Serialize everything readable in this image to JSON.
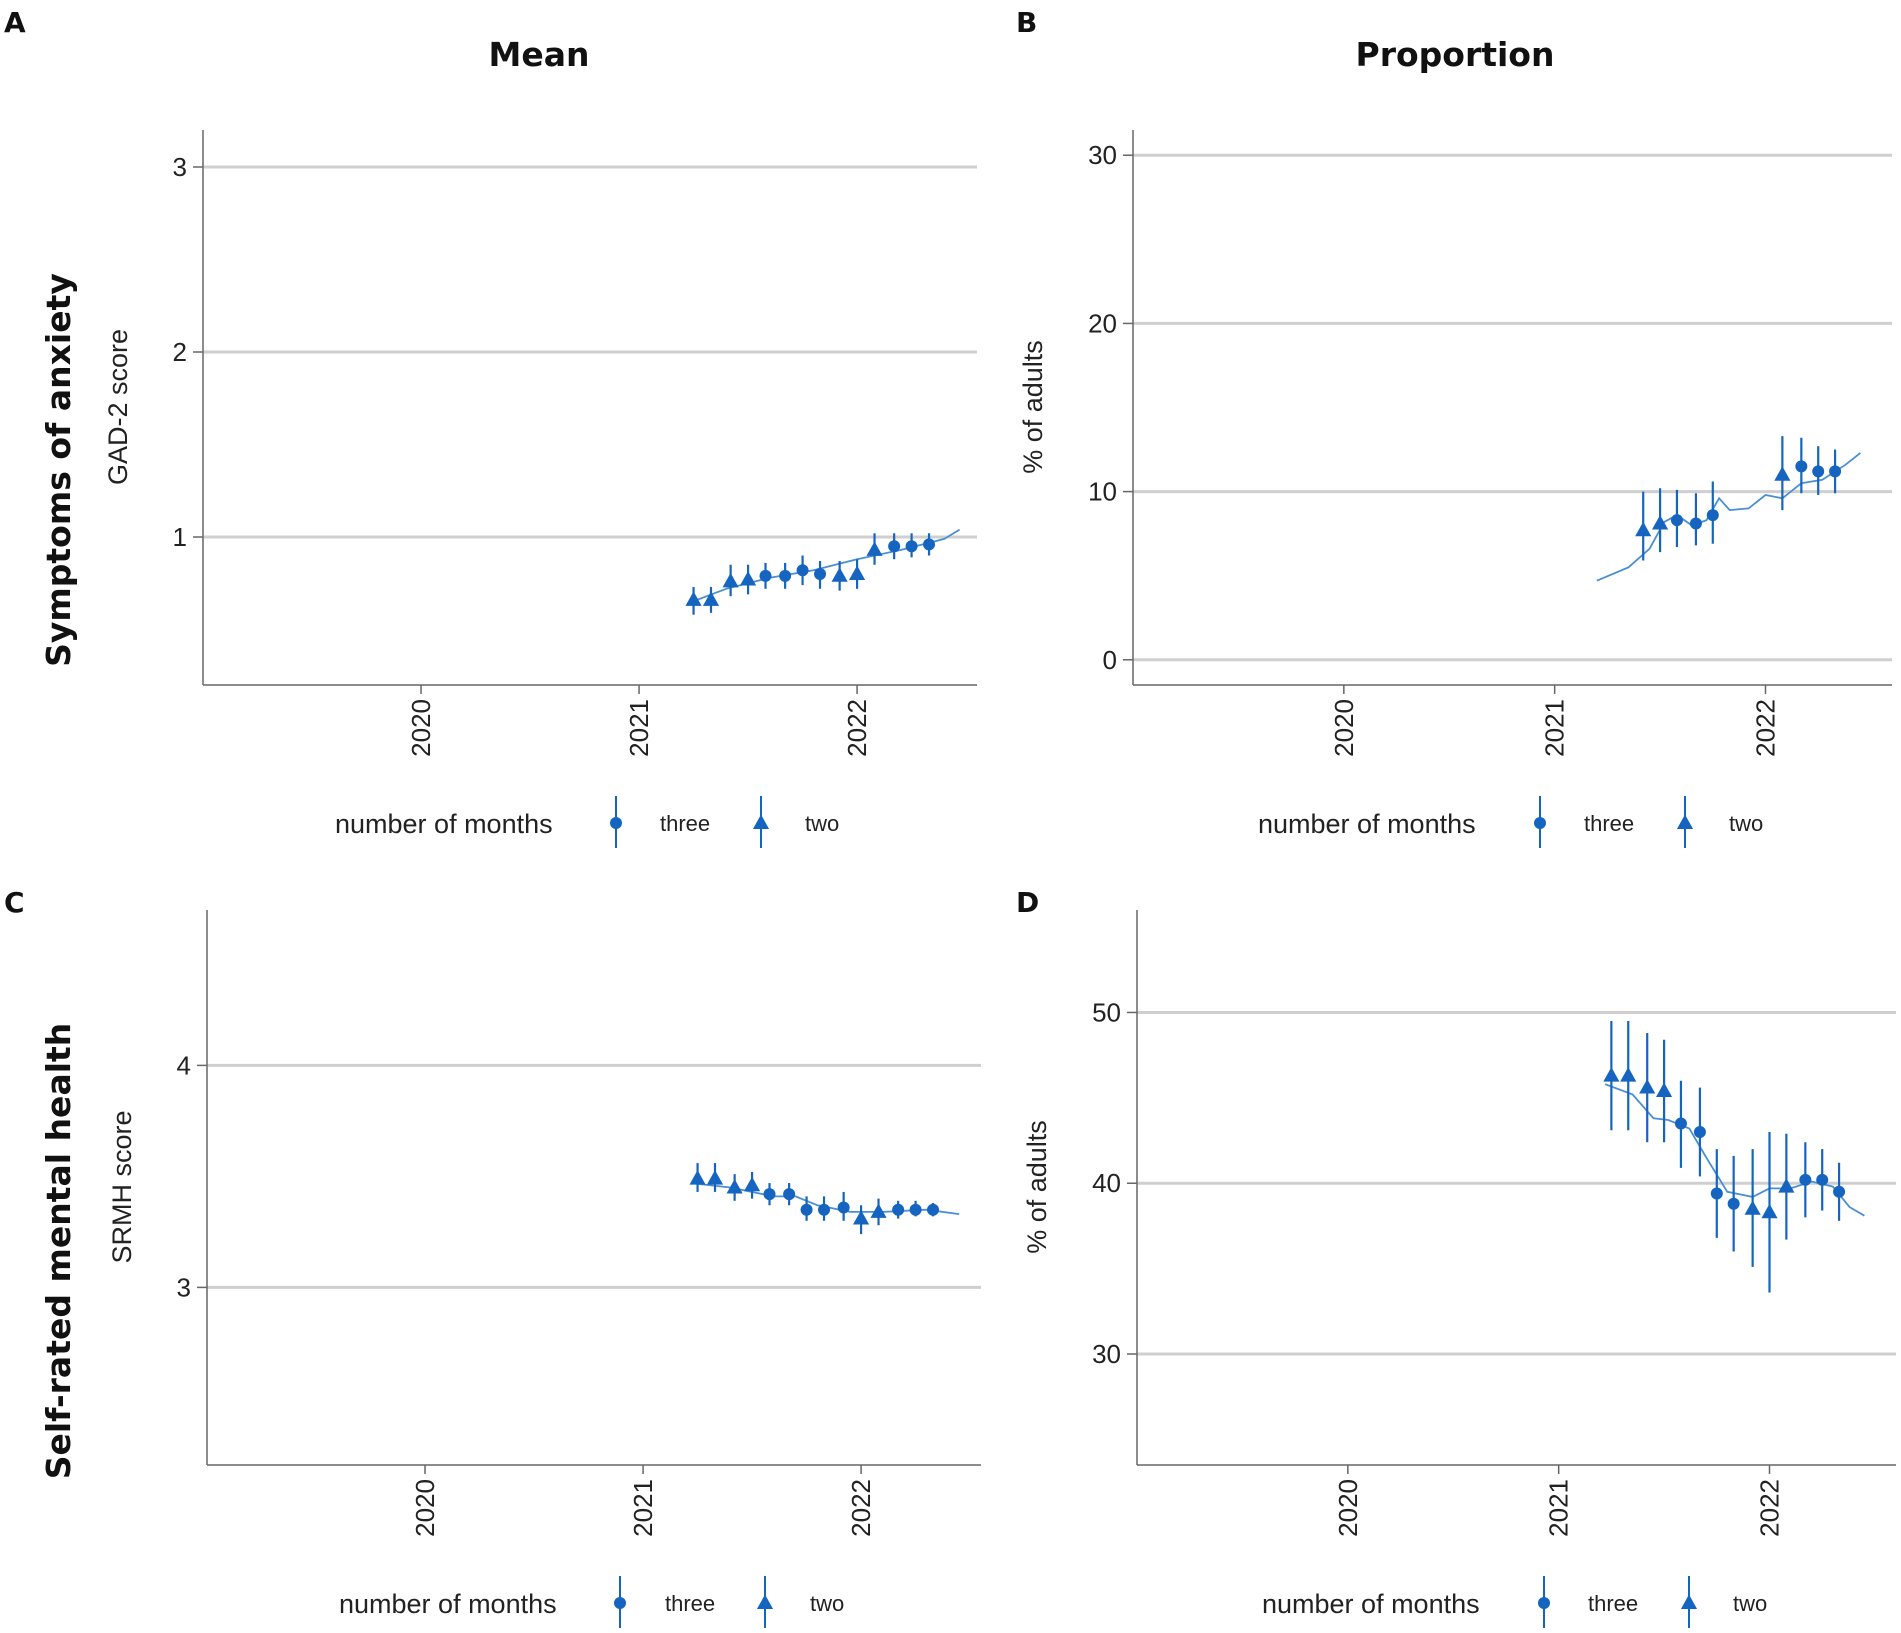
{
  "figure": {
    "col_titles": [
      "Mean",
      "Proportion"
    ],
    "row_titles": [
      "Symptoms of anxiety",
      "Self-rated mental health"
    ],
    "colors": {
      "series": "#1565c0",
      "fit": "#4a8fd6",
      "grid": "#cfcfcf",
      "axis": "#666666",
      "text": "#222222"
    }
  },
  "chart_data": [
    {
      "panel": "A",
      "type": "scatter",
      "ylabel": "GAD-2 score",
      "ylim": [
        0.2,
        3.2
      ],
      "yticks": [
        1,
        2,
        3
      ],
      "yticklabels": [
        "1",
        "2",
        "3"
      ],
      "xlim": [
        2019.0,
        2022.55
      ],
      "xticks": [
        2020,
        2021,
        2022
      ],
      "xticklabels": [
        "2020",
        "2021",
        "2022"
      ],
      "legend": {
        "title": "number of months",
        "entries": [
          "three",
          "two"
        ]
      },
      "points": [
        {
          "x": 2021.25,
          "y": 0.66,
          "lo": 0.58,
          "hi": 0.73,
          "s": "two"
        },
        {
          "x": 2021.33,
          "y": 0.66,
          "lo": 0.59,
          "hi": 0.73,
          "s": "two"
        },
        {
          "x": 2021.42,
          "y": 0.76,
          "lo": 0.68,
          "hi": 0.85,
          "s": "two"
        },
        {
          "x": 2021.5,
          "y": 0.77,
          "lo": 0.69,
          "hi": 0.85,
          "s": "two"
        },
        {
          "x": 2021.58,
          "y": 0.79,
          "lo": 0.72,
          "hi": 0.86,
          "s": "three"
        },
        {
          "x": 2021.67,
          "y": 0.79,
          "lo": 0.72,
          "hi": 0.86,
          "s": "three"
        },
        {
          "x": 2021.75,
          "y": 0.82,
          "lo": 0.74,
          "hi": 0.9,
          "s": "three"
        },
        {
          "x": 2021.83,
          "y": 0.8,
          "lo": 0.72,
          "hi": 0.87,
          "s": "three"
        },
        {
          "x": 2021.92,
          "y": 0.79,
          "lo": 0.71,
          "hi": 0.87,
          "s": "two"
        },
        {
          "x": 2022.0,
          "y": 0.8,
          "lo": 0.72,
          "hi": 0.88,
          "s": "two"
        },
        {
          "x": 2022.08,
          "y": 0.93,
          "lo": 0.85,
          "hi": 1.02,
          "s": "two"
        },
        {
          "x": 2022.17,
          "y": 0.95,
          "lo": 0.88,
          "hi": 1.02,
          "s": "three"
        },
        {
          "x": 2022.25,
          "y": 0.95,
          "lo": 0.89,
          "hi": 1.02,
          "s": "three"
        },
        {
          "x": 2022.33,
          "y": 0.96,
          "lo": 0.9,
          "hi": 1.02,
          "s": "three"
        }
      ],
      "fit": [
        [
          2021.22,
          0.64
        ],
        [
          2021.4,
          0.72
        ],
        [
          2021.6,
          0.78
        ],
        [
          2021.8,
          0.82
        ],
        [
          2022.0,
          0.88
        ],
        [
          2022.2,
          0.93
        ],
        [
          2022.4,
          0.99
        ],
        [
          2022.47,
          1.04
        ]
      ]
    },
    {
      "panel": "B",
      "type": "scatter",
      "ylabel": "% of adults",
      "ylim": [
        -1.5,
        31.5
      ],
      "yticks": [
        0,
        10,
        20,
        30
      ],
      "yticklabels": [
        "0",
        "10",
        "20",
        "30"
      ],
      "xlim": [
        2019.0,
        2022.6
      ],
      "xticks": [
        2020,
        2021,
        2022
      ],
      "xticklabels": [
        "2020",
        "2021",
        "2022"
      ],
      "legend": {
        "title": "number of months",
        "entries": [
          "three",
          "two"
        ]
      },
      "points": [
        {
          "x": 2021.42,
          "y": 7.7,
          "lo": 5.9,
          "hi": 10.0,
          "s": "two"
        },
        {
          "x": 2021.5,
          "y": 8.1,
          "lo": 6.4,
          "hi": 10.2,
          "s": "two"
        },
        {
          "x": 2021.58,
          "y": 8.3,
          "lo": 6.7,
          "hi": 10.1,
          "s": "three"
        },
        {
          "x": 2021.67,
          "y": 8.1,
          "lo": 6.8,
          "hi": 9.9,
          "s": "three"
        },
        {
          "x": 2021.75,
          "y": 8.6,
          "lo": 6.9,
          "hi": 10.6,
          "s": "three"
        },
        {
          "x": 2022.08,
          "y": 11.0,
          "lo": 8.9,
          "hi": 13.3,
          "s": "two"
        },
        {
          "x": 2022.17,
          "y": 11.5,
          "lo": 9.9,
          "hi": 13.2,
          "s": "three"
        },
        {
          "x": 2022.25,
          "y": 11.2,
          "lo": 9.8,
          "hi": 12.7,
          "s": "three"
        },
        {
          "x": 2022.33,
          "y": 11.2,
          "lo": 9.9,
          "hi": 12.5,
          "s": "three"
        }
      ],
      "fit": [
        [
          2021.2,
          4.7
        ],
        [
          2021.35,
          5.5
        ],
        [
          2021.45,
          6.6
        ],
        [
          2021.52,
          8.2
        ],
        [
          2021.58,
          8.6
        ],
        [
          2021.65,
          8.0
        ],
        [
          2021.72,
          8.3
        ],
        [
          2021.78,
          9.6
        ],
        [
          2021.83,
          8.9
        ],
        [
          2021.92,
          9.0
        ],
        [
          2022.0,
          9.8
        ],
        [
          2022.08,
          9.6
        ],
        [
          2022.17,
          10.5
        ],
        [
          2022.27,
          10.7
        ],
        [
          2022.38,
          11.6
        ],
        [
          2022.45,
          12.3
        ]
      ]
    },
    {
      "panel": "C",
      "type": "scatter",
      "ylabel": "SRMH score",
      "ylim": [
        2.2,
        4.7
      ],
      "yticks": [
        3,
        4
      ],
      "yticklabels": [
        "3",
        "4"
      ],
      "xlim": [
        2019.0,
        2022.55
      ],
      "xticks": [
        2020,
        2021,
        2022
      ],
      "xticklabels": [
        "2020",
        "2021",
        "2022"
      ],
      "legend": {
        "title": "number of months",
        "entries": [
          "three",
          "two"
        ]
      },
      "points": [
        {
          "x": 2021.25,
          "y": 3.49,
          "lo": 3.43,
          "hi": 3.56,
          "s": "two"
        },
        {
          "x": 2021.33,
          "y": 3.49,
          "lo": 3.43,
          "hi": 3.56,
          "s": "two"
        },
        {
          "x": 2021.42,
          "y": 3.45,
          "lo": 3.39,
          "hi": 3.51,
          "s": "two"
        },
        {
          "x": 2021.5,
          "y": 3.46,
          "lo": 3.4,
          "hi": 3.52,
          "s": "two"
        },
        {
          "x": 2021.58,
          "y": 3.42,
          "lo": 3.37,
          "hi": 3.47,
          "s": "three"
        },
        {
          "x": 2021.67,
          "y": 3.42,
          "lo": 3.37,
          "hi": 3.47,
          "s": "three"
        },
        {
          "x": 2021.75,
          "y": 3.35,
          "lo": 3.3,
          "hi": 3.41,
          "s": "three"
        },
        {
          "x": 2021.83,
          "y": 3.35,
          "lo": 3.3,
          "hi": 3.41,
          "s": "three"
        },
        {
          "x": 2021.92,
          "y": 3.36,
          "lo": 3.3,
          "hi": 3.43,
          "s": "three"
        },
        {
          "x": 2022.0,
          "y": 3.31,
          "lo": 3.24,
          "hi": 3.37,
          "s": "two"
        },
        {
          "x": 2022.08,
          "y": 3.34,
          "lo": 3.28,
          "hi": 3.4,
          "s": "two"
        },
        {
          "x": 2022.17,
          "y": 3.35,
          "lo": 3.31,
          "hi": 3.39,
          "s": "three"
        },
        {
          "x": 2022.25,
          "y": 3.35,
          "lo": 3.32,
          "hi": 3.39,
          "s": "three"
        },
        {
          "x": 2022.33,
          "y": 3.35,
          "lo": 3.32,
          "hi": 3.38,
          "s": "three"
        }
      ],
      "fit": [
        [
          2021.22,
          3.47
        ],
        [
          2021.4,
          3.45
        ],
        [
          2021.6,
          3.41
        ],
        [
          2021.7,
          3.41
        ],
        [
          2021.8,
          3.37
        ],
        [
          2021.95,
          3.34
        ],
        [
          2022.1,
          3.34
        ],
        [
          2022.3,
          3.35
        ],
        [
          2022.45,
          3.33
        ]
      ]
    },
    {
      "panel": "D",
      "type": "scatter",
      "ylabel": "% of adults",
      "ylim": [
        23.5,
        56.0
      ],
      "yticks": [
        30,
        40,
        50
      ],
      "yticklabels": [
        "30",
        "40",
        "50"
      ],
      "xlim": [
        2019.0,
        2022.6
      ],
      "xticks": [
        2020,
        2021,
        2022
      ],
      "xticklabels": [
        "2020",
        "2021",
        "2022"
      ],
      "legend": {
        "title": "number of months",
        "entries": [
          "three",
          "two"
        ]
      },
      "points": [
        {
          "x": 2021.25,
          "y": 46.3,
          "lo": 43.1,
          "hi": 49.5,
          "s": "two"
        },
        {
          "x": 2021.33,
          "y": 46.3,
          "lo": 43.1,
          "hi": 49.5,
          "s": "two"
        },
        {
          "x": 2021.42,
          "y": 45.6,
          "lo": 42.4,
          "hi": 48.8,
          "s": "two"
        },
        {
          "x": 2021.5,
          "y": 45.4,
          "lo": 42.4,
          "hi": 48.4,
          "s": "two"
        },
        {
          "x": 2021.58,
          "y": 43.5,
          "lo": 40.9,
          "hi": 46.0,
          "s": "three"
        },
        {
          "x": 2021.67,
          "y": 43.0,
          "lo": 40.4,
          "hi": 45.6,
          "s": "three"
        },
        {
          "x": 2021.75,
          "y": 39.4,
          "lo": 36.8,
          "hi": 42.0,
          "s": "three"
        },
        {
          "x": 2021.83,
          "y": 38.8,
          "lo": 36.0,
          "hi": 41.6,
          "s": "three"
        },
        {
          "x": 2021.92,
          "y": 38.5,
          "lo": 35.1,
          "hi": 42.0,
          "s": "two"
        },
        {
          "x": 2022.0,
          "y": 38.3,
          "lo": 33.6,
          "hi": 43.0,
          "s": "two"
        },
        {
          "x": 2022.08,
          "y": 39.8,
          "lo": 36.7,
          "hi": 42.9,
          "s": "two"
        },
        {
          "x": 2022.17,
          "y": 40.2,
          "lo": 38.0,
          "hi": 42.4,
          "s": "three"
        },
        {
          "x": 2022.25,
          "y": 40.2,
          "lo": 38.4,
          "hi": 42.0,
          "s": "three"
        },
        {
          "x": 2022.33,
          "y": 39.5,
          "lo": 37.8,
          "hi": 41.2,
          "s": "three"
        }
      ],
      "fit": [
        [
          2021.22,
          45.8
        ],
        [
          2021.35,
          45.2
        ],
        [
          2021.45,
          43.8
        ],
        [
          2021.52,
          43.7
        ],
        [
          2021.62,
          43.2
        ],
        [
          2021.7,
          41.5
        ],
        [
          2021.8,
          39.5
        ],
        [
          2021.92,
          39.2
        ],
        [
          2022.0,
          39.7
        ],
        [
          2022.1,
          39.7
        ],
        [
          2022.2,
          40.1
        ],
        [
          2022.3,
          39.8
        ],
        [
          2022.38,
          38.6
        ],
        [
          2022.45,
          38.1
        ]
      ]
    }
  ]
}
